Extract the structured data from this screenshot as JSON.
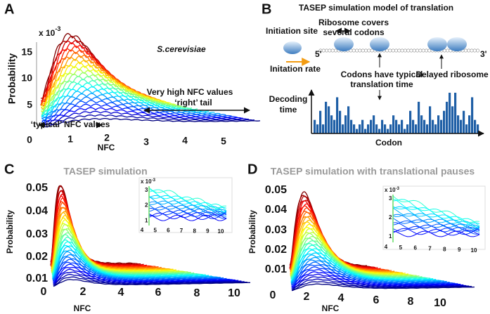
{
  "panel_a": {
    "label": "A",
    "exponent_base": "x 10",
    "exponent_power": "-3",
    "y_label": "Probability",
    "x_label": "NFC",
    "yticks": [
      15,
      10,
      5
    ],
    "xticks": [
      0,
      1,
      2,
      3,
      4,
      5
    ],
    "species": "S.cerevisiae",
    "annotation_high": "Very high NFC values",
    "annotation_tail": "‘right’ tail",
    "annotation_typical": "‘typical’ NFC values"
  },
  "panel_b": {
    "label": "B",
    "title": "TASEP simulation model of translation",
    "ribosome_note": [
      "Ribosome covers",
      "several codons"
    ],
    "initiation_site": "Initiation site",
    "five_prime": "5'",
    "three_prime": "3'",
    "initiation_rate": "Initation rate",
    "codon_note": [
      "Codons have typical",
      "translation time"
    ],
    "delayed": "Delayed ribosome",
    "y_label": [
      "Decoding",
      "time"
    ],
    "x_label": "Codon",
    "decoding_times": [
      3,
      2,
      5,
      2,
      7,
      6,
      4,
      3,
      8,
      5,
      2,
      4,
      6,
      3,
      2,
      1,
      2,
      3,
      1,
      2,
      3,
      4,
      2,
      1,
      3,
      2,
      1,
      2,
      4,
      3,
      2,
      3,
      1,
      2,
      5,
      3,
      2,
      7,
      4,
      3,
      2,
      6,
      3,
      2,
      4,
      3,
      5,
      7,
      9,
      6,
      9,
      4,
      3,
      5,
      2,
      4,
      8,
      3,
      2
    ]
  },
  "panel_c": {
    "label": "C",
    "title": "TASEP simulation",
    "y_label": "Probability",
    "x_label": "NFC",
    "yticks": [
      0.05,
      0.04,
      0.03,
      0.02,
      0.01
    ],
    "xticks": [
      0,
      2,
      4,
      6,
      8,
      10
    ],
    "inset_exponent_base": "x 10",
    "inset_exponent_power": "-3",
    "inset_yticks": [
      3,
      2,
      1
    ],
    "inset_xticks": [
      4,
      5,
      6,
      7,
      8,
      9,
      10
    ]
  },
  "panel_d": {
    "label": "D",
    "title": "TASEP simulation with translational pauses",
    "y_label": "Probability",
    "x_label": "NFC",
    "yticks": [
      0.05,
      0.04,
      0.03,
      0.02,
      0.01
    ],
    "xticks": [
      0,
      2,
      4,
      6,
      8,
      10
    ],
    "inset_exponent_base": "x 10",
    "inset_exponent_power": "-3",
    "inset_yticks": [
      3,
      2,
      1
    ],
    "inset_xticks": [
      4,
      5,
      6,
      7,
      8,
      9,
      10
    ]
  }
}
